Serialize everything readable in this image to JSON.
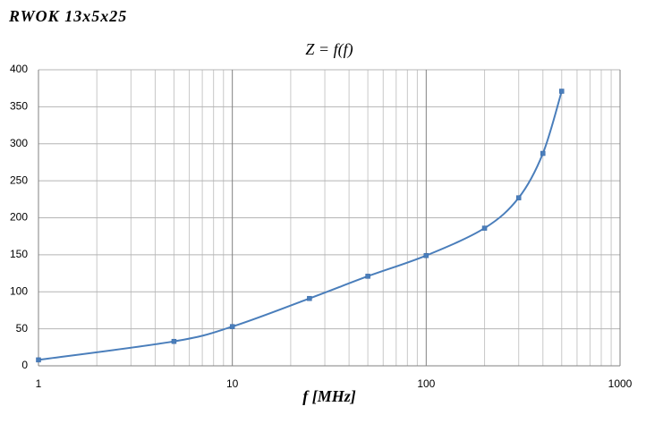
{
  "chart_data": {
    "type": "line",
    "heading": "RWOK 13x5x25",
    "title": "Z = f(f)",
    "x_label": "f [MHz]",
    "x": [
      1,
      5,
      10,
      25,
      50,
      100,
      200,
      300,
      400,
      500
    ],
    "series": [
      {
        "color": "#4a7ebb",
        "values": [
          8,
          33,
          53,
          91,
          121,
          149,
          186,
          227,
          287,
          371
        ]
      }
    ],
    "x_log": true,
    "xlim": [
      1,
      1000
    ],
    "xticks": [
      1,
      10,
      100,
      1000
    ],
    "xminorticks": [
      2,
      3,
      4,
      5,
      6,
      7,
      8,
      9,
      20,
      30,
      40,
      50,
      60,
      70,
      80,
      90,
      200,
      300,
      400,
      500,
      600,
      700,
      800,
      900
    ],
    "ylim": [
      0,
      400
    ],
    "yticks": [
      0,
      50,
      100,
      150,
      200,
      250,
      300,
      350,
      400
    ],
    "grid": true,
    "smooth": true
  }
}
